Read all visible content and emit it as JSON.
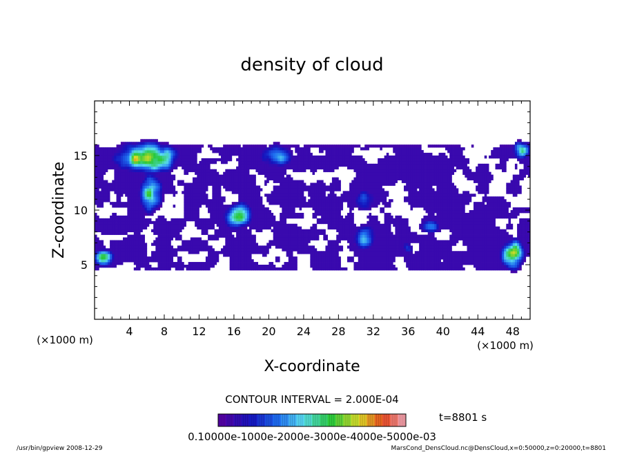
{
  "chart_data": {
    "type": "heatmap",
    "title": "density of cloud",
    "xlabel": "X-coordinate",
    "ylabel": "Z-coordinate",
    "x_unit": "(×1000 m)",
    "y_unit": "(×1000 m)",
    "xlim": [
      0,
      50
    ],
    "ylim": [
      0,
      20
    ],
    "x_ticks": [
      4,
      8,
      12,
      16,
      20,
      24,
      28,
      32,
      36,
      40,
      44,
      48
    ],
    "y_ticks": [
      5,
      10,
      15
    ],
    "contour_interval_text": "CONTOUR INTERVAL = 2.000E-04",
    "time_label": "t=8801 s",
    "colorbar": {
      "min": 0.0001,
      "max": 0.0005,
      "n_levels": 24,
      "tick_labels_text": "0.10000e-1000e-2000e-3000e-4000e-5000e-03"
    },
    "footer_left": "/usr/bin/gpview  2008-12-29",
    "footer_right": "MarsCond_DensCloud.nc@DensCloud,x=0:50000,z=0:20000,t=8801",
    "cloud_base_threshold": 0.0001,
    "regions": [
      {
        "x": 6,
        "z": 14.8,
        "rx": 4.2,
        "rz": 1.6,
        "peak": 0.00042
      },
      {
        "x": 6.5,
        "z": 11.5,
        "rx": 1.6,
        "rz": 2.2,
        "peak": 0.00032
      },
      {
        "x": 1,
        "z": 5.6,
        "rx": 1.5,
        "rz": 0.9,
        "peak": 0.00035
      },
      {
        "x": 16.5,
        "z": 9.5,
        "rx": 2.0,
        "rz": 1.6,
        "peak": 0.0003
      },
      {
        "x": 21,
        "z": 15,
        "rx": 2.4,
        "rz": 1.4,
        "peak": 0.00026
      },
      {
        "x": 31,
        "z": 7.5,
        "rx": 1.8,
        "rz": 1.4,
        "peak": 0.00026
      },
      {
        "x": 31,
        "z": 11,
        "rx": 1.6,
        "rz": 1.3,
        "peak": 0.00022
      },
      {
        "x": 36,
        "z": 6.6,
        "rx": 0.8,
        "rz": 0.8,
        "peak": 0.0002
      },
      {
        "x": 38.5,
        "z": 8.5,
        "rx": 1.5,
        "rz": 0.9,
        "peak": 0.00022
      },
      {
        "x": 48,
        "z": 6,
        "rx": 1.6,
        "rz": 1.6,
        "peak": 0.0004
      },
      {
        "x": 49,
        "z": 15.5,
        "rx": 1.3,
        "rz": 1.0,
        "peak": 0.0003
      }
    ]
  }
}
